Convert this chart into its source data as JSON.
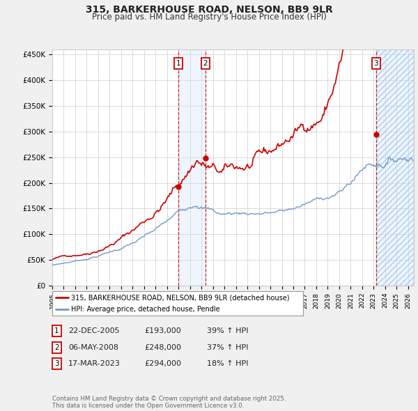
{
  "title": "315, BARKERHOUSE ROAD, NELSON, BB9 9LR",
  "subtitle": "Price paid vs. HM Land Registry's House Price Index (HPI)",
  "hpi_label": "HPI: Average price, detached house, Pendle",
  "price_label": "315, BARKERHOUSE ROAD, NELSON, BB9 9LR (detached house)",
  "ylabel_ticks": [
    "£0",
    "£50K",
    "£100K",
    "£150K",
    "£200K",
    "£250K",
    "£300K",
    "£350K",
    "£400K",
    "£450K"
  ],
  "ytick_values": [
    0,
    50000,
    100000,
    150000,
    200000,
    250000,
    300000,
    350000,
    400000,
    450000
  ],
  "xmin": 1995.0,
  "xmax": 2026.5,
  "ymin": 0,
  "ymax": 460000,
  "sale_events": [
    {
      "label": "1",
      "date": 2005.97,
      "price": 193000,
      "pct": "39%",
      "date_str": "22-DEC-2005"
    },
    {
      "label": "2",
      "date": 2008.35,
      "price": 248000,
      "pct": "37%",
      "date_str": "06-MAY-2008"
    },
    {
      "label": "3",
      "date": 2023.21,
      "price": 294000,
      "pct": "18%",
      "date_str": "17-MAR-2023"
    }
  ],
  "price_color": "#cc0000",
  "hpi_color": "#7399c6",
  "shade_color_blue": "#d0e4f7",
  "background_color": "#f0f0f0",
  "plot_bg_color": "#ffffff",
  "grid_color": "#cccccc",
  "footnote": "Contains HM Land Registry data © Crown copyright and database right 2025.\nThis data is licensed under the Open Government Licence v3.0."
}
